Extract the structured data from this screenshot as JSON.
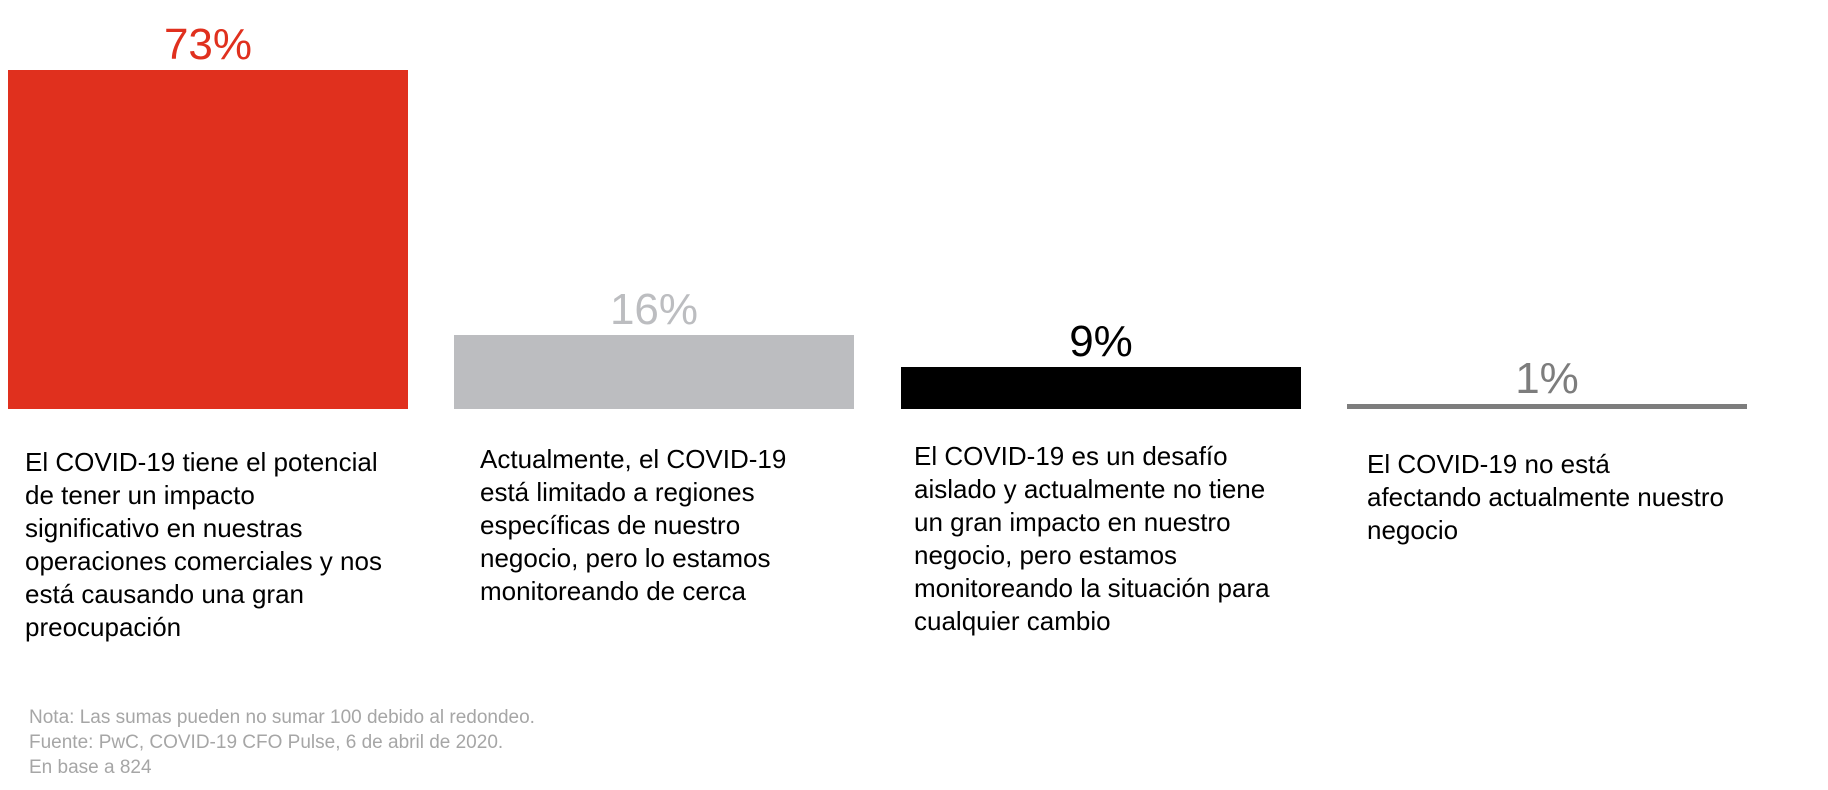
{
  "chart_data": {
    "type": "bar",
    "categories": [
      "El COVID-19 tiene el potencial\nde tener un impacto\nsignificativo en nuestras\noperaciones comerciales y nos\nestá causando una gran\npreocupación",
      "Actualmente, el COVID-19\nestá limitado a regiones\nespecíficas de nuestro\nnegocio, pero lo estamos\nmonitoreando de cerca",
      "El COVID-19 es un desafío\naislado y actualmente no tiene\nun gran impacto en nuestro\nnegocio, pero estamos\nmonitoreando la situación para\ncualquier cambio",
      "El COVID-19 no está\nafectando actualmente nuestro\nnegocio"
    ],
    "values": [
      73,
      16,
      9,
      1
    ],
    "value_labels": [
      "73%",
      "16%",
      "9%",
      "1%"
    ],
    "colors": [
      "#e0301e",
      "#bcbdc0",
      "#000000",
      "#7d7d7d"
    ],
    "label_colors": [
      "#e0301e",
      "#bcbdc0",
      "#000000",
      "#7d7d7d"
    ],
    "unit": "%",
    "ylim": [
      0,
      73
    ],
    "grid": false,
    "legend": "none"
  },
  "footnotes": {
    "note": "Nota: Las sumas pueden no sumar 100 debido al redondeo.",
    "source": "Fuente: PwC, COVID-19 CFO Pulse, 6 de abril de 2020.",
    "base": "En base a 824"
  }
}
